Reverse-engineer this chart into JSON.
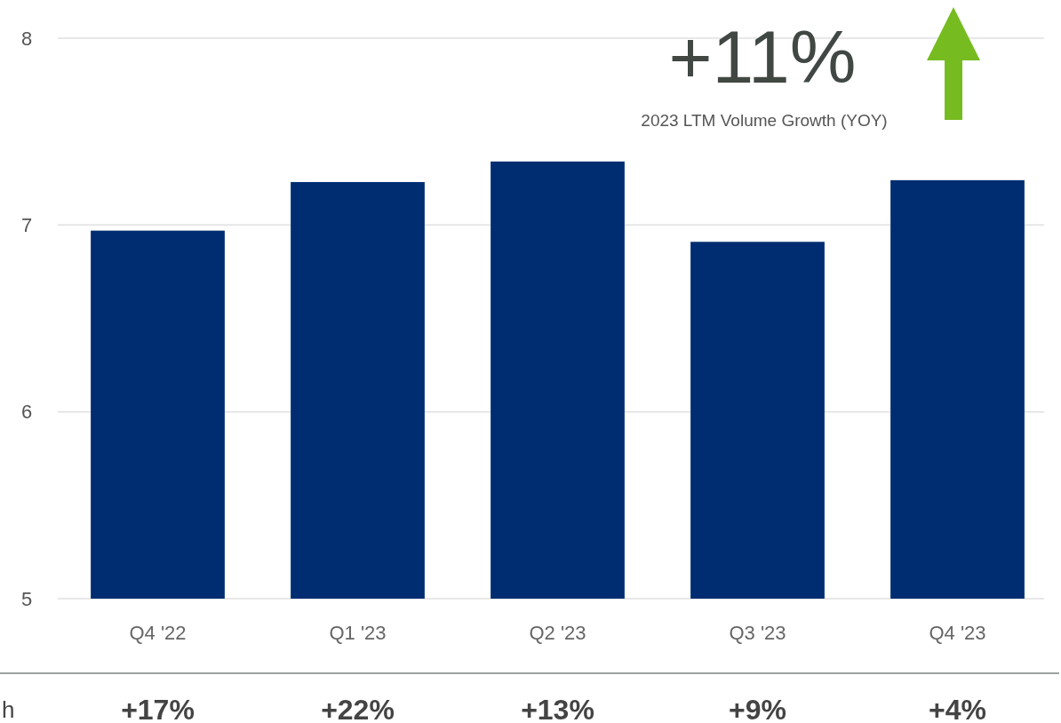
{
  "chart_data": {
    "type": "bar",
    "categories": [
      "Q4 '22",
      "Q1 '23",
      "Q2 '23",
      "Q3 '23",
      "Q4 '23"
    ],
    "values": [
      6.97,
      7.23,
      7.34,
      6.91,
      7.24
    ],
    "color": "#002d72",
    "ylim": [
      5,
      8
    ],
    "yticks": [
      5,
      6,
      7,
      8
    ],
    "grid": "y",
    "annotations": [
      "+11%",
      "2023 LTM Volume Growth (YOY)",
      "h",
      "+17%",
      "+22%",
      "+13%",
      "+9%",
      "+4%"
    ]
  }
}
